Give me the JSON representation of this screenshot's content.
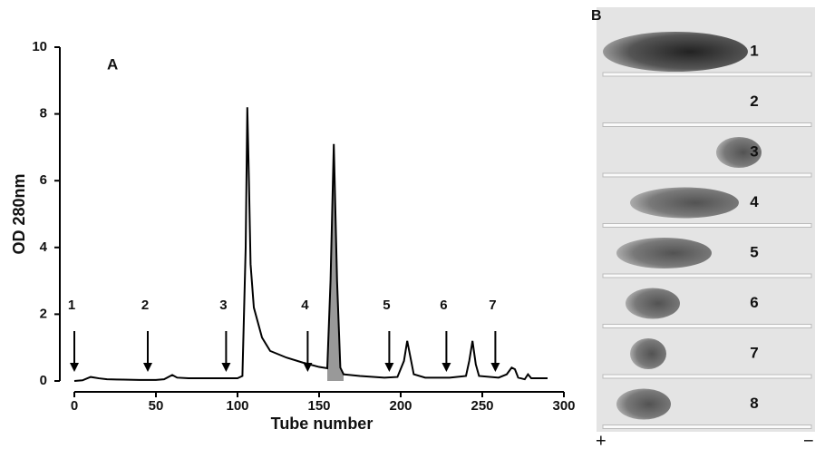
{
  "chart_data": {
    "type": "line",
    "panel_label": "A",
    "x_label": "Tube number",
    "y_label": "OD 280nm",
    "x": [
      0,
      5,
      10,
      15,
      20,
      30,
      40,
      50,
      55,
      60,
      63,
      70,
      80,
      90,
      100,
      103,
      105,
      106,
      107,
      108,
      110,
      115,
      120,
      130,
      140,
      150,
      155,
      157,
      159,
      161,
      163,
      165,
      175,
      190,
      198,
      202,
      204,
      206,
      208,
      215,
      230,
      240,
      242,
      244,
      246,
      248,
      260,
      265,
      268,
      270,
      272,
      276,
      278,
      280,
      290
    ],
    "values": [
      0.0,
      0.02,
      0.12,
      0.08,
      0.05,
      0.04,
      0.03,
      0.03,
      0.05,
      0.18,
      0.1,
      0.08,
      0.08,
      0.08,
      0.08,
      0.15,
      4,
      8.2,
      6,
      3.5,
      2.2,
      1.3,
      0.9,
      0.7,
      0.55,
      0.42,
      0.38,
      3,
      7.1,
      3,
      0.4,
      0.2,
      0.15,
      0.1,
      0.12,
      0.6,
      1.2,
      0.7,
      0.2,
      0.1,
      0.1,
      0.15,
      0.6,
      1.2,
      0.5,
      0.15,
      0.1,
      0.2,
      0.4,
      0.35,
      0.1,
      0.05,
      0.2,
      0.08,
      0.08
    ],
    "color": "#000000",
    "shaded_xrange": [
      155,
      165
    ],
    "shade_color": "#999999",
    "xlim": [
      0,
      300
    ],
    "xticks": [
      0,
      50,
      100,
      150,
      200,
      250,
      300
    ],
    "ylim": [
      0,
      10
    ],
    "yticks": [
      0,
      2,
      4,
      6,
      8,
      10
    ],
    "annotations": [
      {
        "label": "1",
        "x": 0
      },
      {
        "label": "2",
        "x": 45
      },
      {
        "label": "3",
        "x": 93
      },
      {
        "label": "4",
        "x": 143
      },
      {
        "label": "5",
        "x": 193
      },
      {
        "label": "6",
        "x": 228
      },
      {
        "label": "7",
        "x": 258
      }
    ]
  },
  "gel": {
    "label": "B",
    "lanes": [
      "1",
      "2",
      "3",
      "4",
      "5",
      "6",
      "7",
      "8"
    ],
    "anode": "+",
    "cathode": "−"
  }
}
